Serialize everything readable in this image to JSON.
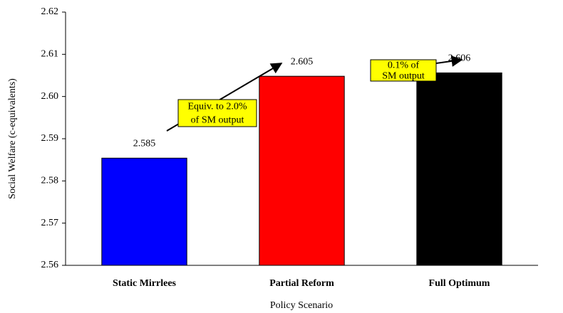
{
  "chart_data": {
    "type": "bar",
    "categories": [
      "Static Mirrlees",
      "Partial Reform",
      "Full Optimum"
    ],
    "series": [
      {
        "name": "Social Welfare",
        "colors": [
          "#0000ff",
          "#ff0000",
          "#000000"
        ],
        "values": [
          2.5854,
          2.6048,
          2.6056
        ],
        "value_labels": [
          "2.585",
          "2.605",
          "2.606"
        ]
      }
    ],
    "ylim": [
      2.56,
      2.62
    ],
    "yticks": [
      2.56,
      2.57,
      2.58,
      2.59,
      {
        "value": 2.6,
        "label": "2.60"
      },
      2.61,
      2.62
    ],
    "y_label": "Social Welfare (c-equivalents)",
    "x_label": "Policy Scenario",
    "annotations": [
      {
        "lines": [
          "Equiv. to 2.0%",
          "of SM output"
        ]
      },
      {
        "lines": [
          "0.1% of",
          "SM output"
        ]
      }
    ]
  }
}
